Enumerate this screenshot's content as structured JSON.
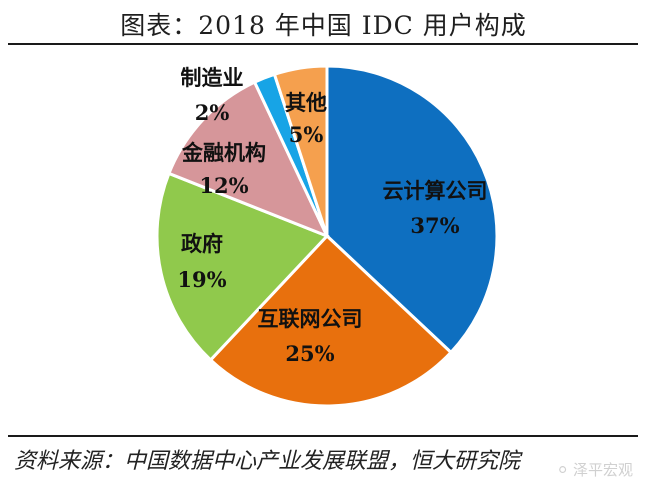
{
  "page": {
    "title": "图表：2018 年中国 IDC 用户构成",
    "source": "资料来源：中国数据中心产业发展联盟，恒大研究院",
    "watermark": "泽平宏观",
    "watermark_icon": "wechat-icon"
  },
  "chart_data": {
    "type": "pie",
    "title": "图表：2018 年中国 IDC 用户构成",
    "slices": [
      {
        "label": "云计算公司",
        "value": 37,
        "value_label": "37%",
        "color": "#0e6fc0"
      },
      {
        "label": "互联网公司",
        "value": 25,
        "value_label": "25%",
        "color": "#e8700d"
      },
      {
        "label": "政府",
        "value": 19,
        "value_label": "19%",
        "color": "#90c94c"
      },
      {
        "label": "金融机构",
        "value": 12,
        "value_label": "12%",
        "color": "#d6969a"
      },
      {
        "label": "制造业",
        "value": 2,
        "value_label": "2%",
        "color": "#17a4e6"
      },
      {
        "label": "其他",
        "value": 5,
        "value_label": "5%",
        "color": "#f5a04e"
      }
    ]
  }
}
